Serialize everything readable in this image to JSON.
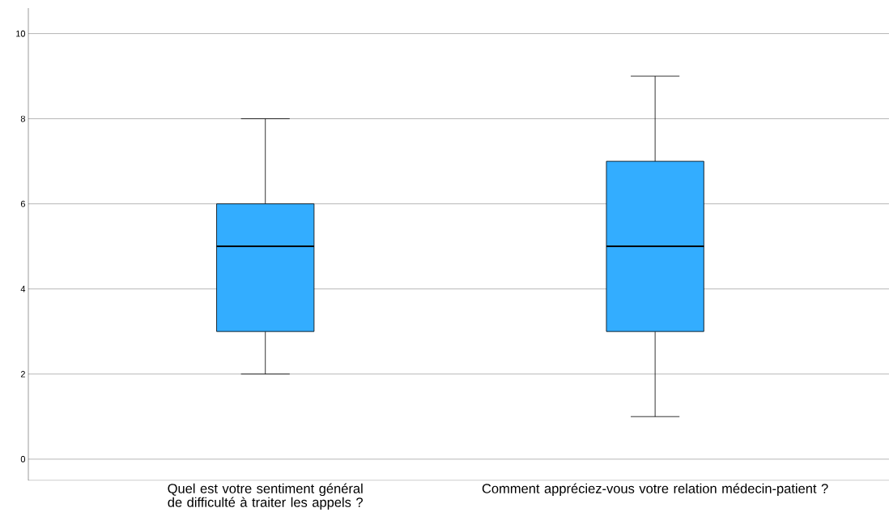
{
  "chart_data": {
    "type": "box",
    "categories": [
      "Quel est votre sentiment général de difficulté à traiter les appels ?",
      "Comment appréciez-vous votre relation médecin-patient ?"
    ],
    "boxes": [
      {
        "low": 2,
        "q1": 3,
        "median": 5,
        "q3": 6,
        "high": 8
      },
      {
        "low": 1,
        "q1": 3,
        "median": 5,
        "q3": 7,
        "high": 9
      }
    ],
    "color": "#33adff",
    "ylim": [
      -0.5,
      10.6
    ],
    "yticks": [
      0,
      2,
      4,
      6,
      8,
      10
    ],
    "grid": "y"
  }
}
